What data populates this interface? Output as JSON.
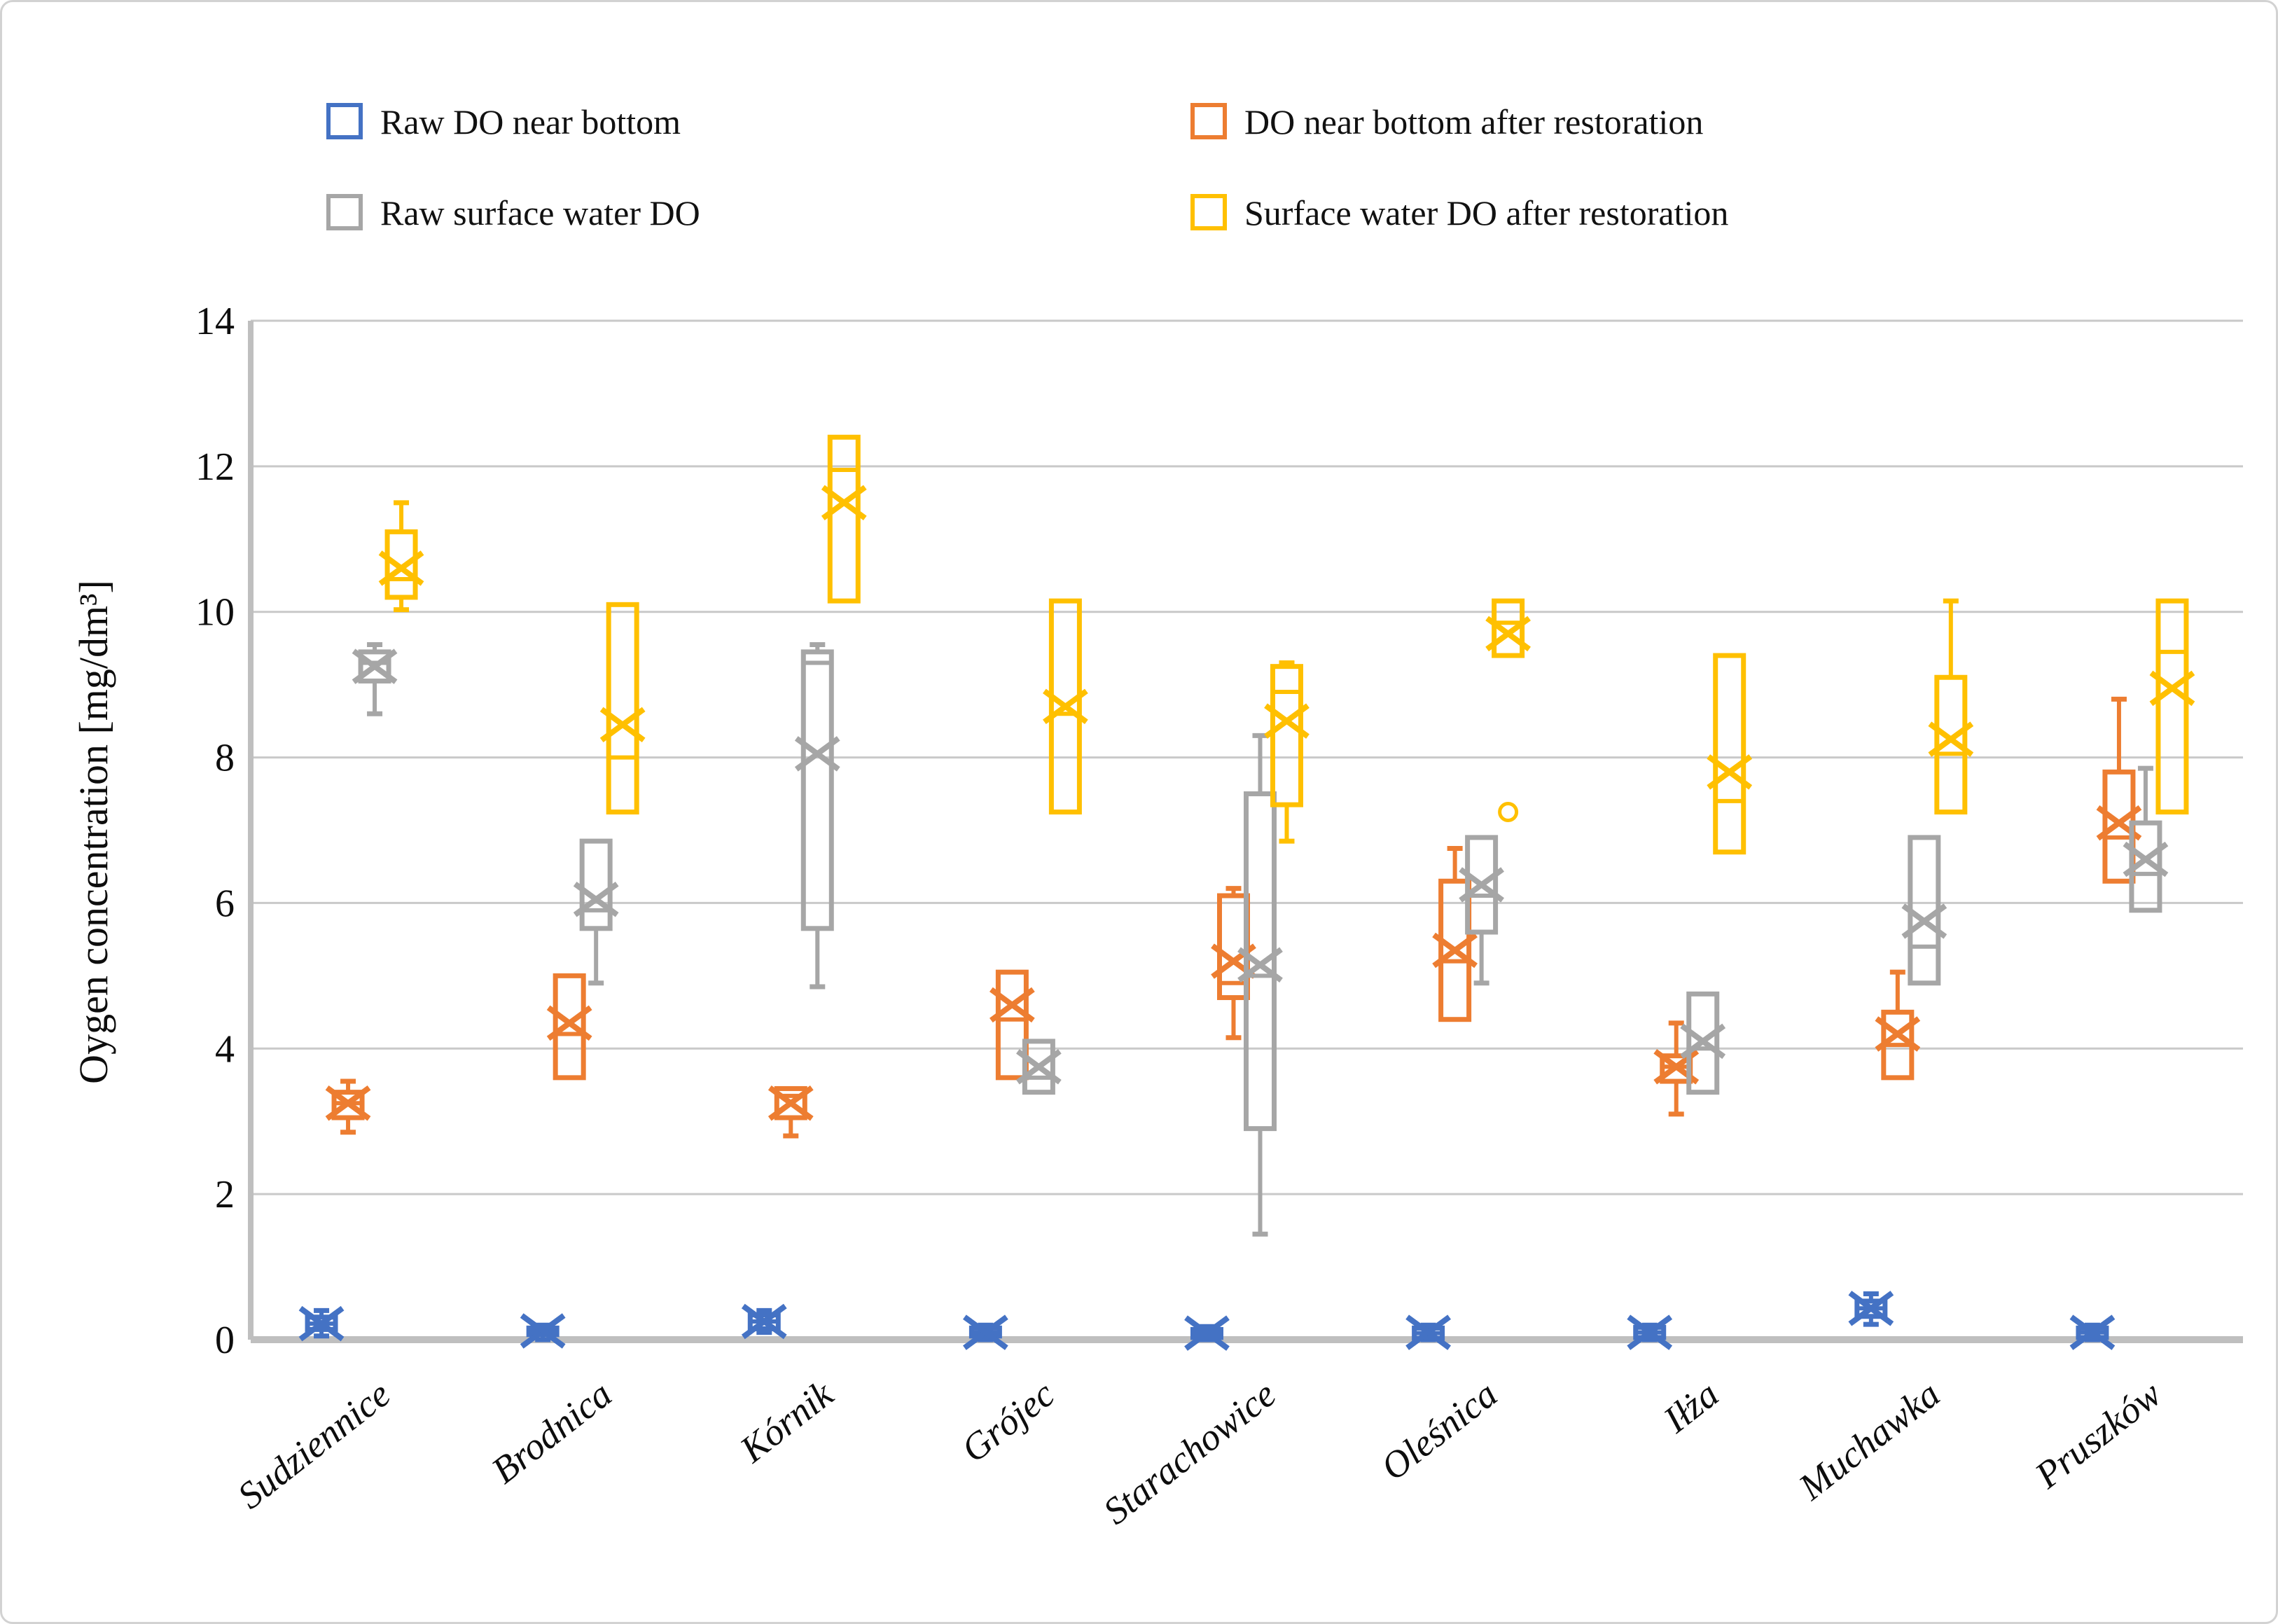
{
  "legend": {
    "items": [
      {
        "label": "Raw DO near bottom",
        "color": "#4472C4"
      },
      {
        "label": "DO near bottom after restoration",
        "color": "#ED7D31"
      },
      {
        "label": "Raw surface water DO",
        "color": "#A6A6A6"
      },
      {
        "label": "Surface water DO after restoration",
        "color": "#FFC000"
      }
    ]
  },
  "y_axis": {
    "label": "Oygen concentration  [mg/dm³]",
    "ticks": [
      0,
      2,
      4,
      6,
      8,
      10,
      12,
      14
    ],
    "min": 0,
    "max": 14
  },
  "chart_data": {
    "type": "boxplot",
    "title": "",
    "xlabel": "",
    "ylabel": "Oygen concentration [mg/dm³]",
    "ylim": [
      0,
      14
    ],
    "grid": "horizontal",
    "legend_position": "top",
    "categories": [
      "Sudziennice",
      "Brodnica",
      "Kórnik",
      "Grójec",
      "Starachowice",
      "Oleśnica",
      "Iłża",
      "Muchawka",
      "Pruszków"
    ],
    "series": [
      {
        "name": "Raw DO near bottom",
        "color": "#4472C4",
        "boxes": [
          {
            "min": 0.05,
            "q1": 0.14,
            "median": 0.22,
            "q3": 0.31,
            "max": 0.4,
            "mean": 0.22,
            "outliers": []
          },
          {
            "min": 0.0,
            "q1": 0.07,
            "median": 0.11,
            "q3": 0.16,
            "max": 0.2,
            "mean": 0.12,
            "outliers": []
          },
          {
            "min": 0.1,
            "q1": 0.15,
            "median": 0.25,
            "q3": 0.34,
            "max": 0.4,
            "mean": 0.25,
            "outliers": []
          },
          {
            "min": 0.0,
            "q1": 0.05,
            "median": 0.1,
            "q3": 0.16,
            "max": 0.2,
            "mean": 0.1,
            "outliers": []
          },
          {
            "min": 0.0,
            "q1": 0.03,
            "median": 0.09,
            "q3": 0.14,
            "max": 0.18,
            "mean": 0.09,
            "outliers": []
          },
          {
            "min": 0.0,
            "q1": 0.02,
            "median": 0.09,
            "q3": 0.16,
            "max": 0.2,
            "mean": 0.1,
            "outliers": []
          },
          {
            "min": 0.0,
            "q1": 0.03,
            "median": 0.1,
            "q3": 0.17,
            "max": 0.2,
            "mean": 0.1,
            "outliers": []
          },
          {
            "min": 0.21,
            "q1": 0.32,
            "median": 0.43,
            "q3": 0.53,
            "max": 0.63,
            "mean": 0.43,
            "outliers": []
          },
          {
            "min": 0.0,
            "q1": 0.03,
            "median": 0.1,
            "q3": 0.16,
            "max": 0.2,
            "mean": 0.1,
            "outliers": []
          }
        ]
      },
      {
        "name": "DO near bottom after restoration",
        "color": "#ED7D31",
        "boxes": [
          {
            "min": 2.85,
            "q1": 3.05,
            "median": 3.25,
            "q3": 3.4,
            "max": 3.55,
            "mean": 3.25,
            "outliers": []
          },
          {
            "min": 3.6,
            "q1": 3.6,
            "median": 4.2,
            "q3": 5.0,
            "max": 5.0,
            "mean": 4.35,
            "outliers": []
          },
          {
            "min": 2.8,
            "q1": 3.05,
            "median": 3.35,
            "q3": 3.45,
            "max": 3.45,
            "mean": 3.25,
            "outliers": []
          },
          {
            "min": 3.6,
            "q1": 3.6,
            "median": 4.4,
            "q3": 5.05,
            "max": 5.05,
            "mean": 4.6,
            "outliers": []
          },
          {
            "min": 4.15,
            "q1": 4.7,
            "median": 4.9,
            "q3": 6.1,
            "max": 6.2,
            "mean": 5.2,
            "outliers": []
          },
          {
            "min": 4.4,
            "q1": 4.4,
            "median": 5.2,
            "q3": 6.3,
            "max": 6.75,
            "mean": 5.35,
            "outliers": []
          },
          {
            "min": 3.1,
            "q1": 3.55,
            "median": 3.75,
            "q3": 3.9,
            "max": 4.35,
            "mean": 3.75,
            "outliers": []
          },
          {
            "min": 3.6,
            "q1": 3.6,
            "median": 4.05,
            "q3": 4.5,
            "max": 5.05,
            "mean": 4.2,
            "outliers": []
          },
          {
            "min": 6.3,
            "q1": 6.3,
            "median": 6.9,
            "q3": 7.8,
            "max": 8.8,
            "mean": 7.1,
            "outliers": []
          }
        ]
      },
      {
        "name": "Raw surface water DO",
        "color": "#A6A6A6",
        "boxes": [
          {
            "min": 8.6,
            "q1": 9.05,
            "median": 9.3,
            "q3": 9.45,
            "max": 9.55,
            "mean": 9.25,
            "outliers": []
          },
          {
            "min": 4.9,
            "q1": 5.65,
            "median": 5.9,
            "q3": 6.85,
            "max": 6.85,
            "mean": 6.05,
            "outliers": []
          },
          {
            "min": 4.85,
            "q1": 5.65,
            "median": 9.3,
            "q3": 9.45,
            "max": 9.55,
            "mean": 8.05,
            "outliers": []
          },
          {
            "min": 3.4,
            "q1": 3.4,
            "median": 3.6,
            "q3": 4.1,
            "max": 4.1,
            "mean": 3.75,
            "outliers": []
          },
          {
            "min": 1.45,
            "q1": 2.9,
            "median": 5.0,
            "q3": 7.5,
            "max": 8.3,
            "mean": 5.15,
            "outliers": []
          },
          {
            "min": 4.9,
            "q1": 5.6,
            "median": 6.1,
            "q3": 6.9,
            "max": 6.9,
            "mean": 6.25,
            "outliers": []
          },
          {
            "min": 3.4,
            "q1": 3.4,
            "median": 4.0,
            "q3": 4.75,
            "max": 4.75,
            "mean": 4.1,
            "outliers": []
          },
          {
            "min": 4.9,
            "q1": 4.9,
            "median": 5.4,
            "q3": 6.9,
            "max": 6.9,
            "mean": 5.75,
            "outliers": []
          },
          {
            "min": 5.9,
            "q1": 5.9,
            "median": 6.4,
            "q3": 7.1,
            "max": 7.85,
            "mean": 6.6,
            "outliers": []
          }
        ]
      },
      {
        "name": "Surface water DO after restoration",
        "color": "#FFC000",
        "boxes": [
          {
            "min": 10.03,
            "q1": 10.2,
            "median": 10.45,
            "q3": 11.1,
            "max": 11.5,
            "mean": 10.6,
            "outliers": []
          },
          {
            "min": 7.25,
            "q1": 7.25,
            "median": 8.0,
            "q3": 10.1,
            "max": 10.1,
            "mean": 8.45,
            "outliers": []
          },
          {
            "min": 10.15,
            "q1": 10.15,
            "median": 11.95,
            "q3": 12.4,
            "max": 12.4,
            "mean": 11.5,
            "outliers": []
          },
          {
            "min": 7.25,
            "q1": 7.25,
            "median": 8.6,
            "q3": 10.15,
            "max": 10.15,
            "mean": 8.7,
            "outliers": []
          },
          {
            "min": 6.85,
            "q1": 7.35,
            "median": 8.9,
            "q3": 9.25,
            "max": 9.3,
            "mean": 8.5,
            "outliers": []
          },
          {
            "min": 9.4,
            "q1": 9.4,
            "median": 9.85,
            "q3": 10.15,
            "max": 10.15,
            "mean": 9.7,
            "outliers": [
              7.25
            ]
          },
          {
            "min": 6.7,
            "q1": 6.7,
            "median": 7.4,
            "q3": 9.4,
            "max": 9.4,
            "mean": 7.8,
            "outliers": []
          },
          {
            "min": 7.25,
            "q1": 7.25,
            "median": 8.05,
            "q3": 9.1,
            "max": 10.15,
            "mean": 8.25,
            "outliers": []
          },
          {
            "min": 7.25,
            "q1": 7.25,
            "median": 9.45,
            "q3": 10.15,
            "max": 10.15,
            "mean": 8.95,
            "outliers": []
          }
        ]
      }
    ]
  }
}
